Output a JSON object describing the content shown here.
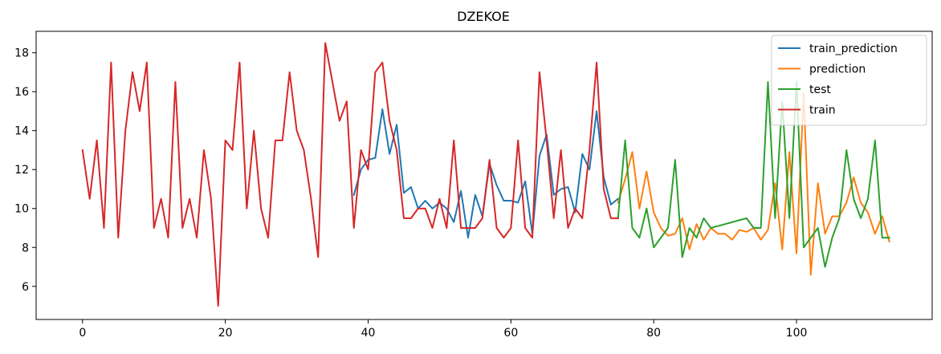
{
  "chart_data": {
    "type": "line",
    "title": "DZEKOE",
    "xlabel": "",
    "ylabel": "",
    "xlim": [
      -6.5,
      119
    ],
    "ylim": [
      4.3,
      19.1
    ],
    "x_ticks": [
      0,
      20,
      40,
      60,
      80,
      100
    ],
    "y_ticks": [
      6,
      8,
      10,
      12,
      14,
      16,
      18
    ],
    "grid": false,
    "legend_position": "top-right",
    "series": [
      {
        "name": "train_prediction",
        "color": "#1f77b4",
        "x": [
          38,
          39,
          40,
          41,
          42,
          43,
          44,
          45,
          46,
          47,
          48,
          49,
          50,
          51,
          52,
          53,
          54,
          55,
          56,
          57,
          58,
          59,
          60,
          61,
          62,
          63,
          64,
          65,
          66,
          67,
          68,
          69,
          70,
          71,
          72,
          73,
          74,
          75
        ],
        "y": [
          10.7,
          12.0,
          12.5,
          12.6,
          15.1,
          12.8,
          14.3,
          10.8,
          11.1,
          10.0,
          10.4,
          10.0,
          10.3,
          10.0,
          9.3,
          10.9,
          8.5,
          10.7,
          9.6,
          12.3,
          11.2,
          10.4,
          10.4,
          10.3,
          11.4,
          8.7,
          12.7,
          13.8,
          10.7,
          11.0,
          11.1,
          9.8,
          12.8,
          12.0,
          15.0,
          11.6,
          10.2,
          10.5
        ]
      },
      {
        "name": "prediction",
        "color": "#ff7f0e",
        "x": [
          75,
          76,
          77,
          78,
          79,
          80,
          81,
          82,
          83,
          84,
          85,
          86,
          87,
          88,
          89,
          90,
          91,
          92,
          93,
          94,
          95,
          96,
          97,
          98,
          99,
          100,
          101,
          102,
          103,
          104,
          105,
          106,
          107,
          108,
          109,
          110,
          111,
          112,
          113
        ],
        "y": [
          10.3,
          11.5,
          12.9,
          10.0,
          11.9,
          9.8,
          9.0,
          8.6,
          8.7,
          9.5,
          7.9,
          9.2,
          8.4,
          9.0,
          8.7,
          8.7,
          8.4,
          8.9,
          8.8,
          9.0,
          8.4,
          8.9,
          11.3,
          7.9,
          12.9,
          7.7,
          15.9,
          6.6,
          11.3,
          8.7,
          9.6,
          9.6,
          10.3,
          11.6,
          10.3,
          9.8,
          8.7,
          9.6,
          8.3
        ]
      },
      {
        "name": "test",
        "color": "#2ca02c",
        "x": [
          75,
          76,
          77,
          78,
          79,
          80,
          81,
          82,
          83,
          84,
          85,
          86,
          87,
          88,
          93,
          94,
          95,
          96,
          97,
          98,
          99,
          100,
          101,
          102,
          103,
          104,
          105,
          106,
          107,
          108,
          109,
          110,
          111,
          112,
          113
        ],
        "y": [
          9.5,
          13.5,
          9.0,
          8.5,
          10.0,
          8.0,
          8.5,
          9.0,
          12.5,
          7.5,
          9.0,
          8.5,
          9.5,
          9.0,
          9.5,
          9.0,
          9.0,
          16.5,
          9.5,
          15.5,
          9.5,
          16.5,
          8.0,
          8.5,
          9.0,
          7.0,
          8.5,
          9.5,
          13.0,
          10.5,
          9.5,
          10.5,
          13.5,
          8.5,
          8.5
        ]
      },
      {
        "name": "train",
        "color": "#d62728",
        "x": [
          0,
          1,
          2,
          3,
          4,
          5,
          6,
          7,
          8,
          9,
          10,
          11,
          12,
          13,
          14,
          15,
          16,
          17,
          18,
          19,
          20,
          21,
          22,
          23,
          24,
          25,
          26,
          27,
          28,
          29,
          30,
          31,
          32,
          33,
          34,
          35,
          36,
          37,
          38,
          39,
          40,
          41,
          42,
          43,
          44,
          45,
          46,
          47,
          48,
          49,
          50,
          51,
          52,
          53,
          54,
          55,
          56,
          57,
          58,
          59,
          60,
          61,
          62,
          63,
          64,
          65,
          66,
          67,
          68,
          69,
          70,
          71,
          72,
          73,
          74,
          75
        ],
        "y": [
          13.0,
          10.5,
          13.5,
          9.0,
          17.5,
          8.5,
          14.0,
          17.0,
          15.0,
          17.5,
          9.0,
          10.5,
          8.5,
          16.5,
          9.0,
          10.5,
          8.5,
          13.0,
          10.5,
          5.0,
          13.5,
          13.0,
          17.5,
          10.0,
          14.0,
          10.0,
          8.5,
          13.5,
          13.5,
          17.0,
          14.0,
          13.0,
          10.5,
          7.5,
          18.5,
          16.5,
          14.5,
          15.5,
          9.0,
          13.0,
          12.0,
          17.0,
          17.5,
          14.5,
          13.0,
          9.5,
          9.5,
          10.0,
          10.0,
          9.0,
          10.5,
          9.0,
          13.5,
          9.0,
          9.0,
          9.0,
          9.5,
          12.5,
          9.0,
          8.5,
          9.0,
          13.5,
          9.0,
          8.5,
          17.0,
          13.5,
          9.5,
          13.0,
          9.0,
          10.0,
          9.5,
          13.0,
          17.5,
          11.0,
          9.5,
          9.5
        ]
      }
    ]
  }
}
